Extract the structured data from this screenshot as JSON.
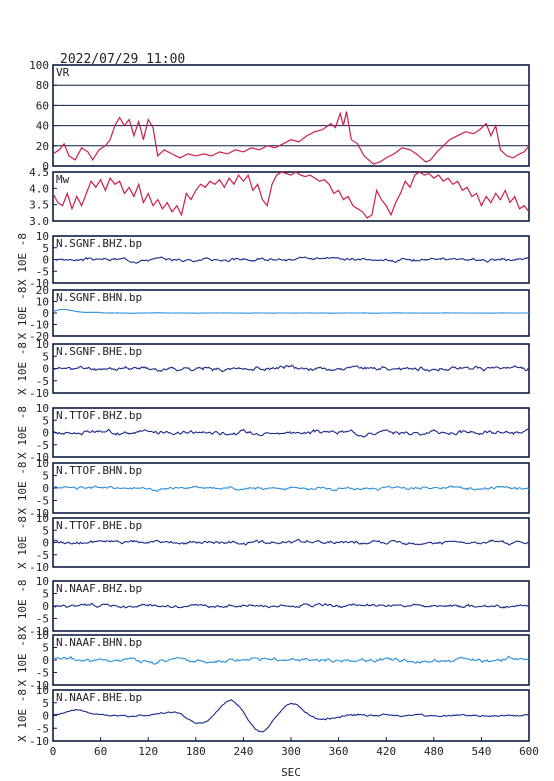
{
  "header": {
    "timestamp": "2022/07/29 11:00"
  },
  "chart_data": {
    "type": "line",
    "x_axis": {
      "label": "SEC",
      "range": [
        0,
        600
      ],
      "ticks": [
        "0",
        "60",
        "120",
        "180",
        "240",
        "300",
        "360",
        "420",
        "480",
        "540",
        "600"
      ]
    },
    "panels": [
      {
        "id": "vr",
        "label": "VR",
        "color": "#cc1f4a",
        "grid": true,
        "ylim": [
          0,
          100
        ],
        "ticks": [
          "100",
          "80",
          "60",
          "40",
          "20",
          "0"
        ],
        "ylabel": "",
        "series": [
          [
            0,
            12
          ],
          [
            8,
            16
          ],
          [
            14,
            22
          ],
          [
            20,
            10
          ],
          [
            28,
            6
          ],
          [
            36,
            18
          ],
          [
            44,
            14
          ],
          [
            50,
            6
          ],
          [
            58,
            16
          ],
          [
            66,
            20
          ],
          [
            72,
            26
          ],
          [
            78,
            40
          ],
          [
            84,
            48
          ],
          [
            90,
            40
          ],
          [
            96,
            46
          ],
          [
            102,
            30
          ],
          [
            108,
            44
          ],
          [
            114,
            26
          ],
          [
            120,
            46
          ],
          [
            126,
            38
          ],
          [
            132,
            10
          ],
          [
            140,
            16
          ],
          [
            150,
            12
          ],
          [
            160,
            8
          ],
          [
            170,
            12
          ],
          [
            180,
            10
          ],
          [
            190,
            12
          ],
          [
            200,
            10
          ],
          [
            210,
            14
          ],
          [
            220,
            12
          ],
          [
            230,
            16
          ],
          [
            240,
            14
          ],
          [
            250,
            18
          ],
          [
            260,
            16
          ],
          [
            270,
            20
          ],
          [
            280,
            18
          ],
          [
            290,
            22
          ],
          [
            300,
            26
          ],
          [
            310,
            24
          ],
          [
            320,
            30
          ],
          [
            330,
            34
          ],
          [
            340,
            36
          ],
          [
            350,
            42
          ],
          [
            356,
            38
          ],
          [
            362,
            52
          ],
          [
            366,
            40
          ],
          [
            370,
            54
          ],
          [
            376,
            26
          ],
          [
            384,
            22
          ],
          [
            392,
            10
          ],
          [
            398,
            6
          ],
          [
            404,
            2
          ],
          [
            412,
            4
          ],
          [
            420,
            8
          ],
          [
            430,
            12
          ],
          [
            440,
            18
          ],
          [
            450,
            16
          ],
          [
            458,
            12
          ],
          [
            464,
            8
          ],
          [
            470,
            4
          ],
          [
            476,
            6
          ],
          [
            484,
            14
          ],
          [
            492,
            20
          ],
          [
            500,
            26
          ],
          [
            510,
            30
          ],
          [
            520,
            34
          ],
          [
            530,
            32
          ],
          [
            538,
            36
          ],
          [
            546,
            42
          ],
          [
            552,
            30
          ],
          [
            558,
            40
          ],
          [
            564,
            16
          ],
          [
            572,
            10
          ],
          [
            580,
            8
          ],
          [
            588,
            12
          ],
          [
            594,
            14
          ],
          [
            600,
            20
          ]
        ]
      },
      {
        "id": "mw",
        "label": "Mw",
        "color": "#cc1f4a",
        "grid": false,
        "ylim": [
          3.0,
          4.6
        ],
        "ticks": [
          "4.5",
          "4.0",
          "3.5",
          "3.0"
        ],
        "ylabel": "",
        "series": [
          [
            0,
            3.9
          ],
          [
            6,
            3.6
          ],
          [
            12,
            3.5
          ],
          [
            18,
            3.9
          ],
          [
            24,
            3.4
          ],
          [
            30,
            3.8
          ],
          [
            36,
            3.5
          ],
          [
            42,
            3.9
          ],
          [
            48,
            4.3
          ],
          [
            54,
            4.1
          ],
          [
            60,
            4.35
          ],
          [
            66,
            4.0
          ],
          [
            72,
            4.4
          ],
          [
            78,
            4.2
          ],
          [
            84,
            4.3
          ],
          [
            90,
            3.9
          ],
          [
            96,
            4.1
          ],
          [
            102,
            3.8
          ],
          [
            108,
            4.2
          ],
          [
            114,
            3.6
          ],
          [
            120,
            3.9
          ],
          [
            126,
            3.5
          ],
          [
            132,
            3.7
          ],
          [
            138,
            3.4
          ],
          [
            144,
            3.6
          ],
          [
            150,
            3.3
          ],
          [
            156,
            3.5
          ],
          [
            162,
            3.2
          ],
          [
            168,
            3.9
          ],
          [
            174,
            3.7
          ],
          [
            180,
            4.0
          ],
          [
            186,
            4.2
          ],
          [
            192,
            4.1
          ],
          [
            198,
            4.3
          ],
          [
            204,
            4.2
          ],
          [
            210,
            4.35
          ],
          [
            216,
            4.1
          ],
          [
            222,
            4.4
          ],
          [
            228,
            4.2
          ],
          [
            234,
            4.5
          ],
          [
            240,
            4.3
          ],
          [
            246,
            4.5
          ],
          [
            252,
            4.0
          ],
          [
            258,
            4.2
          ],
          [
            264,
            3.7
          ],
          [
            270,
            3.5
          ],
          [
            276,
            4.2
          ],
          [
            282,
            4.5
          ],
          [
            288,
            4.6
          ],
          [
            294,
            4.55
          ],
          [
            300,
            4.5
          ],
          [
            306,
            4.6
          ],
          [
            312,
            4.5
          ],
          [
            318,
            4.45
          ],
          [
            324,
            4.5
          ],
          [
            330,
            4.4
          ],
          [
            336,
            4.3
          ],
          [
            342,
            4.35
          ],
          [
            348,
            4.2
          ],
          [
            354,
            3.9
          ],
          [
            360,
            4.0
          ],
          [
            366,
            3.7
          ],
          [
            372,
            3.8
          ],
          [
            378,
            3.5
          ],
          [
            384,
            3.4
          ],
          [
            390,
            3.3
          ],
          [
            396,
            3.1
          ],
          [
            402,
            3.2
          ],
          [
            408,
            4.0
          ],
          [
            414,
            3.7
          ],
          [
            420,
            3.5
          ],
          [
            426,
            3.2
          ],
          [
            432,
            3.6
          ],
          [
            438,
            3.9
          ],
          [
            444,
            4.3
          ],
          [
            450,
            4.1
          ],
          [
            456,
            4.5
          ],
          [
            462,
            4.6
          ],
          [
            468,
            4.5
          ],
          [
            474,
            4.55
          ],
          [
            480,
            4.4
          ],
          [
            486,
            4.5
          ],
          [
            492,
            4.3
          ],
          [
            498,
            4.4
          ],
          [
            504,
            4.2
          ],
          [
            510,
            4.3
          ],
          [
            516,
            4.0
          ],
          [
            522,
            4.1
          ],
          [
            528,
            3.8
          ],
          [
            534,
            3.9
          ],
          [
            540,
            3.5
          ],
          [
            546,
            3.8
          ],
          [
            552,
            3.6
          ],
          [
            558,
            3.9
          ],
          [
            564,
            3.7
          ],
          [
            570,
            4.0
          ],
          [
            576,
            3.6
          ],
          [
            582,
            3.8
          ],
          [
            588,
            3.4
          ],
          [
            594,
            3.5
          ],
          [
            600,
            3.3
          ]
        ]
      },
      {
        "id": "sgnf-bhz",
        "label": "N.SGNF.BHZ.bp",
        "color": "#1b2a8c",
        "ylim": [
          -10,
          10
        ],
        "ticks": [
          "10",
          "5",
          "0",
          "-5",
          "-10"
        ],
        "ylabel": "X 10E -8",
        "amp": 0.8,
        "seed": 3,
        "shape": "noise"
      },
      {
        "id": "sgnf-bhn",
        "label": "N.SGNF.BHN.bp",
        "color": "#2f8fd8",
        "ylim": [
          -20,
          20
        ],
        "ticks": [
          "20",
          "10",
          "0",
          "-10",
          "-20"
        ],
        "ylabel": "X 10E -8",
        "amp": 0.4,
        "seed": 7,
        "shape": "bhn"
      },
      {
        "id": "sgnf-bhe",
        "label": "N.SGNF.BHE.bp",
        "color": "#1b2a8c",
        "ylim": [
          -10,
          10
        ],
        "ticks": [
          "10",
          "5",
          "0",
          "-5",
          "-10"
        ],
        "ylabel": "X 10E -8",
        "amp": 1.0,
        "seed": 11,
        "shape": "noise"
      },
      {
        "id": "ttof-bhz",
        "label": "N.TTOF.BHZ.bp",
        "color": "#1b2a8c",
        "ylim": [
          -10,
          10
        ],
        "ticks": [
          "10",
          "5",
          "0",
          "-5",
          "-10"
        ],
        "ylabel": "X 10E -8",
        "amp": 1.0,
        "seed": 17,
        "shape": "noise"
      },
      {
        "id": "ttof-bhn",
        "label": "N.TTOF.BHN.bp",
        "color": "#2f8fd8",
        "ylim": [
          -10,
          10
        ],
        "ticks": [
          "10",
          "5",
          "0",
          "-5",
          "-10"
        ],
        "ylabel": "X 10E -8",
        "amp": 0.8,
        "seed": 23,
        "shape": "noise"
      },
      {
        "id": "ttof-bhe",
        "label": "N.TTOF.BHE.bp",
        "color": "#1b2a8c",
        "ylim": [
          -10,
          10
        ],
        "ticks": [
          "10",
          "5",
          "0",
          "-5",
          "-10"
        ],
        "ylabel": "X 10E -8",
        "amp": 0.9,
        "seed": 29,
        "shape": "noise"
      },
      {
        "id": "naaf-bhz",
        "label": "N.NAAF.BHZ.bp",
        "color": "#1b2a8c",
        "ylim": [
          -10,
          10
        ],
        "ticks": [
          "10",
          "5",
          "0",
          "-5",
          "-10"
        ],
        "ylabel": "X 10E -8",
        "amp": 0.8,
        "seed": 31,
        "shape": "noise"
      },
      {
        "id": "naaf-bhn",
        "label": "N.NAAF.BHN.bp",
        "color": "#2f8fd8",
        "ylim": [
          -10,
          10
        ],
        "ticks": [
          "10",
          "5",
          "0",
          "-5",
          "-10"
        ],
        "ylabel": "X 10E -8",
        "amp": 1.0,
        "seed": 37,
        "shape": "naafbhn"
      },
      {
        "id": "naaf-bhe",
        "label": "N.NAAF.BHE.bp",
        "color": "#1b2a8c",
        "ylim": [
          -10,
          10
        ],
        "ticks": [
          "10",
          "5",
          "0",
          "-5",
          "-10"
        ],
        "ylabel": "X 10E -8",
        "amp": 0.8,
        "seed": 41,
        "shape": "naafbhe"
      }
    ]
  }
}
